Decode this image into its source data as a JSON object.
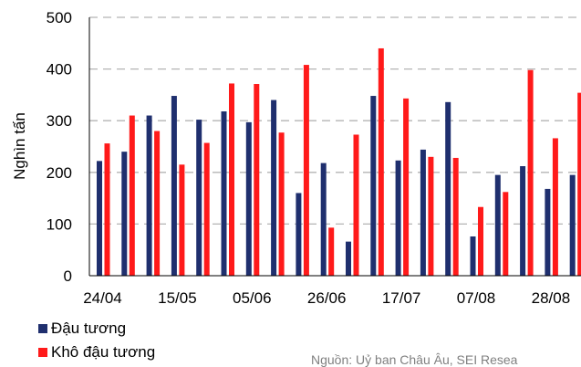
{
  "chart_data": {
    "type": "bar",
    "ylabel": "Nghìn tấn",
    "xlabel": "",
    "ylim": [
      0,
      500
    ],
    "yticks": [
      0,
      100,
      200,
      300,
      400,
      500
    ],
    "grid": "horizontal-dashed",
    "x_tick_labels": [
      "24/04",
      "15/05",
      "05/06",
      "26/06",
      "17/07",
      "07/08",
      "28/08"
    ],
    "series": [
      {
        "name": "Đậu tương",
        "color": "#1f2f6e",
        "values": [
          222,
          240,
          310,
          348,
          302,
          318,
          297,
          340,
          160,
          218,
          66,
          348,
          223,
          244,
          336,
          76,
          195,
          212,
          168,
          195
        ]
      },
      {
        "name": "Khô đậu tương",
        "color": "#ff1a1a",
        "values": [
          256,
          310,
          280,
          215,
          257,
          372,
          371,
          277,
          408,
          93,
          273,
          440,
          343,
          230,
          228,
          133,
          162,
          398,
          266,
          354
        ]
      }
    ],
    "legend_position": "bottom-left"
  },
  "source_note": "Nguồn: Uỷ ban Châu Âu, SEI Resea"
}
